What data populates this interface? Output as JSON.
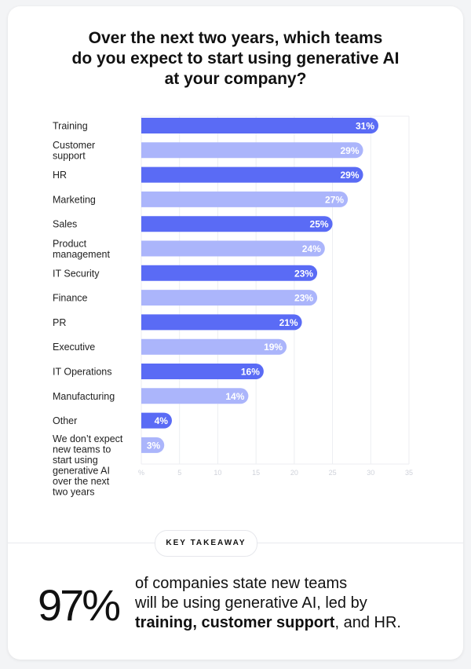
{
  "title": "Over the next two years, which teams do you expect to start using generative AI at your company?",
  "title_lines": [
    "Over the next two years, which teams",
    "do you expect to start using generative AI",
    "at your company?"
  ],
  "colors": {
    "dark": "#5a6bf5",
    "light": "#abb5fb",
    "grid": "#eceef2"
  },
  "chart_data": {
    "type": "bar",
    "orientation": "horizontal",
    "title": "Over the next two years, which teams do you expect to start using generative AI at your company?",
    "categories": [
      [
        "Training"
      ],
      [
        "Customer",
        "support"
      ],
      [
        "HR"
      ],
      [
        "Marketing"
      ],
      [
        "Sales"
      ],
      [
        "Product",
        "management"
      ],
      [
        "IT Security"
      ],
      [
        "Finance"
      ],
      [
        "PR"
      ],
      [
        "Executive"
      ],
      [
        "IT Operations"
      ],
      [
        "Manufacturing"
      ],
      [
        "Other"
      ],
      [
        "We don’t expect",
        "new teams to",
        "start using",
        "generative AI",
        "over the next",
        "two years"
      ]
    ],
    "values": [
      31,
      29,
      29,
      27,
      25,
      24,
      23,
      23,
      21,
      19,
      16,
      14,
      4,
      3
    ],
    "data_labels": [
      "31%",
      "29%",
      "29%",
      "27%",
      "25%",
      "24%",
      "23%",
      "23%",
      "21%",
      "19%",
      "16%",
      "14%",
      "4%",
      "3%"
    ],
    "xlim": [
      0,
      35
    ],
    "x_ticks": [
      "%",
      "5",
      "10",
      "15",
      "20",
      "25",
      "30",
      "35"
    ],
    "grid": true,
    "xlabel": "",
    "ylabel": ""
  },
  "takeaway": {
    "badge": "KEY TAKEAWAY",
    "stat": "97%",
    "line1": "of companies state new teams",
    "line2": "will be using generative AI, led by",
    "bold": "training, customer support",
    "tail": ", and HR."
  }
}
